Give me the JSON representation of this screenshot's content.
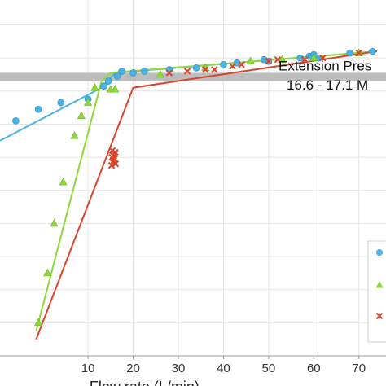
{
  "chart_data": {
    "type": "scatter",
    "xlabel": "Flow rate (L/min)",
    "ylabel": "",
    "xlim": [
      -9.5,
      76
    ],
    "ylim": [
      0,
      21.5
    ],
    "x_ticks": [
      10,
      20,
      30,
      40,
      50,
      60,
      70
    ],
    "grid": true,
    "band": {
      "y_range": [
        16.6,
        17.1
      ],
      "label_line1": "Extension Pres",
      "label_line2": "16.6  - 17.1 M",
      "color": "#bdbdbd"
    },
    "series": [
      {
        "marker": "circle",
        "color": "#4ab3e6",
        "points": [
          [
            -6,
            14.2
          ],
          [
            -1,
            14.9
          ],
          [
            4,
            15.3
          ],
          [
            10,
            15.5
          ],
          [
            13.5,
            16.3
          ],
          [
            14.5,
            16.6
          ],
          [
            16.5,
            16.9
          ],
          [
            17.5,
            17.2
          ],
          [
            20,
            17.1
          ],
          [
            22.5,
            17.2
          ],
          [
            28,
            17.3
          ],
          [
            34,
            17.4
          ],
          [
            40,
            17.6
          ],
          [
            43,
            17.7
          ],
          [
            49,
            17.9
          ],
          [
            50,
            17.8
          ],
          [
            57,
            18.0
          ],
          [
            59,
            18.1
          ],
          [
            59.5,
            18.1
          ],
          [
            60,
            18.2
          ],
          [
            61,
            18.0
          ],
          [
            68,
            18.3
          ],
          [
            73,
            18.4
          ]
        ],
        "fit": [
          [
            -9.5,
            13.0
          ],
          [
            13,
            16.2
          ],
          [
            16,
            17.1
          ],
          [
            74,
            18.4
          ]
        ]
      },
      {
        "marker": "triangle",
        "color": "#8fd83a",
        "points": [
          [
            -1,
            2.0
          ],
          [
            1,
            5.0
          ],
          [
            2.5,
            8.0
          ],
          [
            4.5,
            10.5
          ],
          [
            7,
            13.3
          ],
          [
            8.5,
            14.5
          ],
          [
            10,
            15.3
          ],
          [
            11.5,
            16.2
          ],
          [
            15,
            16.1
          ],
          [
            16,
            16.1
          ],
          [
            26,
            17.0
          ],
          [
            36,
            17.4
          ],
          [
            46,
            17.8
          ],
          [
            53,
            17.9
          ],
          [
            60,
            18.0
          ],
          [
            70,
            18.3
          ]
        ],
        "fit": [
          [
            -1.5,
            1.5
          ],
          [
            13,
            16.6
          ],
          [
            15,
            17.1
          ],
          [
            74,
            18.4
          ]
        ]
      },
      {
        "marker": "cross",
        "color": "#d8452c",
        "points": [
          [
            15.2,
            11.5
          ],
          [
            15.5,
            11.7
          ],
          [
            15.8,
            11.9
          ],
          [
            15.3,
            12.0
          ],
          [
            15.6,
            12.1
          ],
          [
            15.9,
            12.2
          ],
          [
            16.0,
            12.3
          ],
          [
            15.4,
            12.4
          ],
          [
            15.7,
            11.8
          ],
          [
            16.1,
            11.6
          ],
          [
            28,
            17.1
          ],
          [
            32,
            17.2
          ],
          [
            36,
            17.3
          ],
          [
            38,
            17.3
          ],
          [
            42,
            17.5
          ],
          [
            44,
            17.6
          ],
          [
            50,
            17.8
          ],
          [
            52,
            17.9
          ],
          [
            58,
            17.9
          ],
          [
            62,
            18.0
          ],
          [
            70,
            18.3
          ]
        ],
        "fit": [
          [
            -1.5,
            1.0
          ],
          [
            20,
            16.2
          ],
          [
            74,
            18.4
          ]
        ]
      }
    ]
  }
}
